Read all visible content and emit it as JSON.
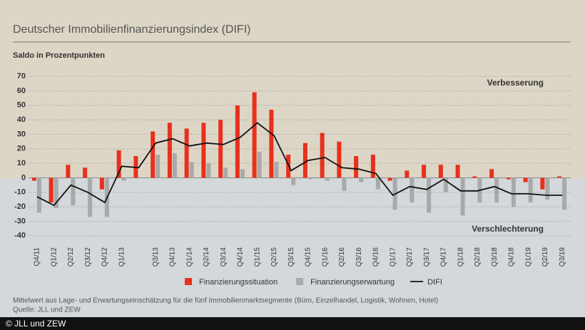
{
  "chart_data": {
    "type": "bar",
    "title": "Deutscher Immobilienfinanzierungsindex (DIFI)",
    "subtitle": "Saldo in Prozentpunkten",
    "annotations": [
      "Verbesserung",
      "Verschlechterung"
    ],
    "categories": [
      "Q4/11",
      "Q1/12",
      "Q2/12",
      "Q3/12",
      "Q4/12",
      "Q1/13",
      null,
      "Q3/13",
      "Q4/13",
      "Q1/14",
      "Q2/14",
      "Q3/14",
      "Q4/14",
      "Q1/15",
      "Q2/15",
      "Q3/15",
      "Q4/15",
      "Q1/16",
      "Q2/16",
      "Q3/16",
      "Q4/16",
      "Q1/17",
      "Q2/17",
      "Q3/17",
      "Q4/17",
      "Q1/18",
      "Q2/18",
      "Q3/18",
      "Q4/18",
      "Q1/19",
      "Q2/19",
      "Q3/19"
    ],
    "series": [
      {
        "name": "Finanzierungssituation",
        "color": "#e8301c",
        "kind": "bar",
        "values": [
          -2,
          -17,
          9,
          7,
          -8,
          19,
          15,
          32,
          38,
          34,
          38,
          40,
          50,
          59,
          47,
          16,
          24,
          31,
          25,
          15,
          16,
          -2,
          5,
          9,
          9,
          9,
          1,
          6,
          -1,
          -3,
          -8,
          1
        ]
      },
      {
        "name": "Finanzierungserwartung",
        "color": "#a9a9a9",
        "kind": "bar",
        "values": [
          -24,
          -21,
          -19,
          -27,
          -27,
          -2,
          0,
          16,
          17,
          11,
          10,
          7,
          6,
          18,
          11,
          -5,
          -1,
          -2,
          -9,
          -3,
          -8,
          -22,
          -17,
          -24,
          -10,
          -26,
          -17,
          -17,
          -20,
          -17,
          -15,
          -22
        ]
      },
      {
        "name": "DIFI",
        "color": "#111111",
        "kind": "line",
        "values": [
          -13,
          -19,
          -5,
          -10,
          -17,
          8,
          7,
          24,
          27,
          22,
          24,
          23,
          28,
          38,
          29,
          5,
          12,
          14,
          7,
          6,
          3,
          -12,
          -6,
          -8,
          -1,
          -9,
          -9,
          -6,
          -11,
          -11,
          -12,
          -12
        ]
      }
    ],
    "ylim": [
      -45,
      75
    ],
    "yticks": [
      -40,
      -30,
      -20,
      -10,
      0,
      10,
      20,
      30,
      40,
      50,
      60,
      70
    ],
    "grid": true,
    "footnote": "Mittelwert aus Lage- und Erwartungseinschätzung für die fünf Immobilienmarktsegmente (Büro, Einzelhandel, Logistik, Wohnen, Hotel)",
    "source": "Quelle: JLL und ZEW",
    "credit": "© JLL und ZEW"
  }
}
